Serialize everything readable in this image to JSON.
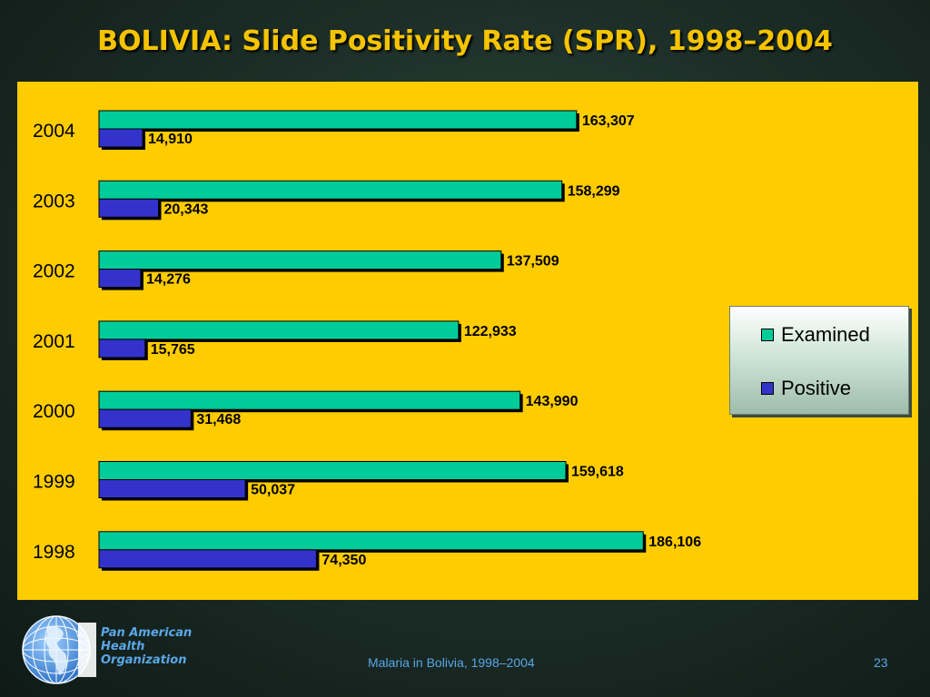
{
  "slide": {
    "title": "BOLIVIA: Slide Positivity Rate (SPR), 1998–2004",
    "footer_text": "Malaria in Bolivia, 1998–2004",
    "page_number": "23"
  },
  "organization": {
    "line1": "Pan American",
    "line2": "Health",
    "line3": "Organization"
  },
  "legend": {
    "position": "right",
    "items": [
      {
        "label": "Examined",
        "color": "#00cc99"
      },
      {
        "label": "Positive",
        "color": "#3333cc"
      }
    ]
  },
  "chart_data": {
    "type": "bar",
    "orientation": "horizontal",
    "categories": [
      "2004",
      "2003",
      "2002",
      "2001",
      "2000",
      "1999",
      "1998"
    ],
    "series": [
      {
        "name": "Examined",
        "color": "#00cc99",
        "values": [
          163307,
          158299,
          137509,
          122933,
          143990,
          159618,
          186106
        ],
        "labels": [
          "163,307",
          "158,299",
          "137,509",
          "122,933",
          "143,990",
          "159,618",
          "186,106"
        ]
      },
      {
        "name": "Positive",
        "color": "#3333cc",
        "values": [
          14910,
          20343,
          14276,
          15765,
          31468,
          50037,
          74350
        ],
        "labels": [
          "14,910",
          "20,343",
          "14,276",
          "15,765",
          "31,468",
          "50,037",
          "74,350"
        ]
      }
    ],
    "title": "BOLIVIA: Slide Positivity Rate (SPR), 1998–2004",
    "xlabel": "",
    "ylabel": "",
    "grid": false,
    "xlim": [
      0,
      200000
    ]
  }
}
